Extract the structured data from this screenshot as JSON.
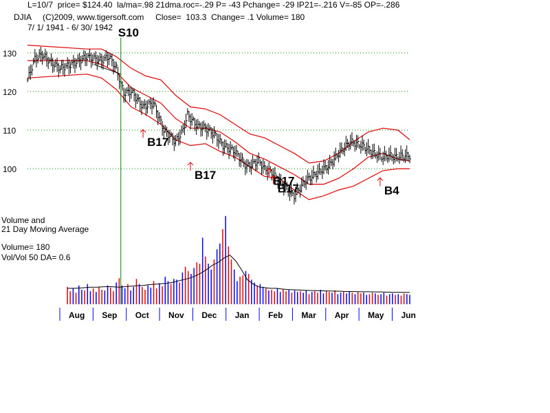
{
  "header": {
    "line1": "L=10/7  price= $124.40  la/ma=.98 21dma.roc=-.29 P= -43 Pchange= -29 IP21=-.216 V=-85 OP=-.286",
    "line2": "DJIA     (C)2009, www.tigersoft.com     Close=  103.3  Change= .1 Volume= 180",
    "line3": "7/ 1/ 1941 - 6/ 30/ 1942"
  },
  "volume_panel": {
    "title_line1": "Volume and",
    "title_line2": "21 Day Moving Average",
    "volume_text": "Volume= 180",
    "ratio_text": "Vol/Vol 50 DA= 0.6"
  },
  "colors": {
    "band": "#e00000",
    "price": "#000000",
    "grid": "#008000",
    "signal_line": "#008000",
    "volume_up": "#e00000",
    "volume_down": "#0000ff",
    "arrow": "#e00000"
  },
  "chart_data": {
    "type": "line",
    "title": "DJIA",
    "ylim": [
      92,
      133
    ],
    "yticks": [
      100,
      110,
      120,
      130
    ],
    "months": [
      "Aug",
      "Sep",
      "Oct",
      "Nov",
      "Dec",
      "Jan",
      "Feb",
      "Mar",
      "Apr",
      "May",
      "Jun"
    ],
    "price_series": {
      "name": "DJIA close",
      "x": [
        0,
        5,
        10,
        16,
        22,
        30,
        40,
        50,
        55,
        60,
        63,
        65,
        70,
        78,
        85,
        92,
        100,
        105,
        108,
        110,
        115,
        120,
        126,
        132,
        140,
        148,
        156,
        160,
        165,
        172,
        180,
        188,
        196,
        200,
        204,
        210,
        218,
        226,
        234,
        240,
        244,
        248,
        252,
        258
      ],
      "values": [
        123,
        128.5,
        129.5,
        127.5,
        126,
        127,
        129,
        128,
        129,
        126,
        122,
        119.5,
        120,
        116,
        117,
        110,
        107,
        110,
        114,
        113,
        111,
        110.5,
        109,
        106,
        104.5,
        100.5,
        102,
        100,
        99,
        96,
        93,
        97,
        99,
        100,
        101,
        104,
        107,
        106,
        104,
        103,
        103.5,
        103,
        103.3,
        103.3
      ]
    },
    "band_series": [
      {
        "name": "upper band",
        "x": [
          0,
          40,
          50,
          60,
          70,
          80,
          90,
          100,
          110,
          120,
          130,
          140,
          150,
          160,
          170,
          180,
          190,
          200,
          210,
          220,
          230,
          240,
          250,
          258
        ],
        "values": [
          132,
          131,
          131,
          129,
          126,
          124,
          123,
          119,
          116,
          115.5,
          114,
          111.5,
          109,
          108,
          106,
          104,
          101.5,
          102,
          104,
          107,
          109.5,
          110.5,
          110,
          107.5
        ]
      },
      {
        "name": "middle band",
        "x": [
          0,
          40,
          50,
          60,
          70,
          80,
          90,
          100,
          110,
          120,
          130,
          140,
          150,
          160,
          170,
          180,
          190,
          200,
          210,
          220,
          230,
          240,
          250,
          258
        ],
        "values": [
          128,
          128,
          127,
          125,
          121,
          119,
          117,
          113,
          110.5,
          110.5,
          109.5,
          107,
          104,
          102.5,
          100.5,
          98.5,
          96,
          96,
          97.5,
          100,
          103,
          104,
          102.5,
          102
        ]
      },
      {
        "name": "lower band",
        "x": [
          0,
          40,
          50,
          60,
          70,
          80,
          90,
          100,
          110,
          120,
          130,
          140,
          150,
          160,
          170,
          180,
          190,
          200,
          210,
          220,
          230,
          240,
          250,
          258
        ],
        "values": [
          123.5,
          124.5,
          123.5,
          120.5,
          116,
          114,
          111.5,
          107.5,
          106,
          106.5,
          104.5,
          103,
          100.5,
          98,
          97.5,
          94.5,
          92,
          93,
          94.5,
          95.5,
          97.5,
          99.5,
          100,
          100
        ]
      }
    ],
    "signals": [
      {
        "label": "S10",
        "x": 63,
        "value": 131.5,
        "kind": "sell"
      },
      {
        "label": "B17",
        "x": 78,
        "value": 108,
        "kind": "buy"
      },
      {
        "label": "B17",
        "x": 110,
        "value": 99.5,
        "kind": "buy"
      },
      {
        "label": "B17",
        "x": 163,
        "value": 98,
        "kind": "buy"
      },
      {
        "label": "B17",
        "x": 166,
        "value": 96,
        "kind": "buy"
      },
      {
        "label": "B4",
        "x": 238,
        "value": 95.5,
        "kind": "buy"
      }
    ],
    "trendline": {
      "x": [
        45,
        63
      ],
      "values": [
        127,
        124.5
      ]
    },
    "volume": {
      "ylim": [
        0,
        700
      ],
      "values": [
        120,
        90,
        110,
        80,
        130,
        100,
        95,
        140,
        90,
        110,
        85,
        120,
        100,
        95,
        130,
        115,
        90,
        150,
        180,
        130,
        110,
        140,
        95,
        120,
        175,
        140,
        120,
        100,
        130,
        115,
        160,
        110,
        145,
        125,
        190,
        160,
        140,
        175,
        170,
        150,
        220,
        260,
        230,
        210,
        250,
        290,
        280,
        460,
        330,
        280,
        240,
        310,
        380,
        420,
        520,
        610,
        400,
        310,
        240,
        160,
        190,
        200,
        230,
        210,
        170,
        150,
        130,
        140,
        120,
        110,
        95,
        100,
        90,
        110,
        85,
        105,
        90,
        100,
        80,
        95,
        85,
        90,
        80,
        95,
        70,
        85,
        90,
        80,
        100,
        75,
        90,
        85,
        80,
        95,
        70,
        80,
        85,
        75,
        90,
        80,
        70,
        85,
        75,
        80,
        65,
        70,
        80,
        75,
        65,
        70,
        80,
        60,
        70,
        75,
        65,
        70,
        60,
        75,
        70,
        65
      ],
      "ma21": [
        110,
        110,
        112,
        115,
        118,
        118,
        120,
        122,
        120,
        118,
        122,
        125,
        128,
        130,
        135,
        138,
        142,
        145,
        150,
        160,
        170,
        180,
        195,
        215,
        240,
        270,
        290,
        320,
        340,
        300,
        240,
        170,
        140,
        120,
        115,
        110,
        110,
        105,
        102,
        100,
        98,
        96,
        95,
        94,
        93,
        92,
        91,
        90,
        88,
        88,
        87,
        86,
        86,
        85,
        85,
        84,
        83,
        83,
        82,
        82
      ]
    }
  }
}
